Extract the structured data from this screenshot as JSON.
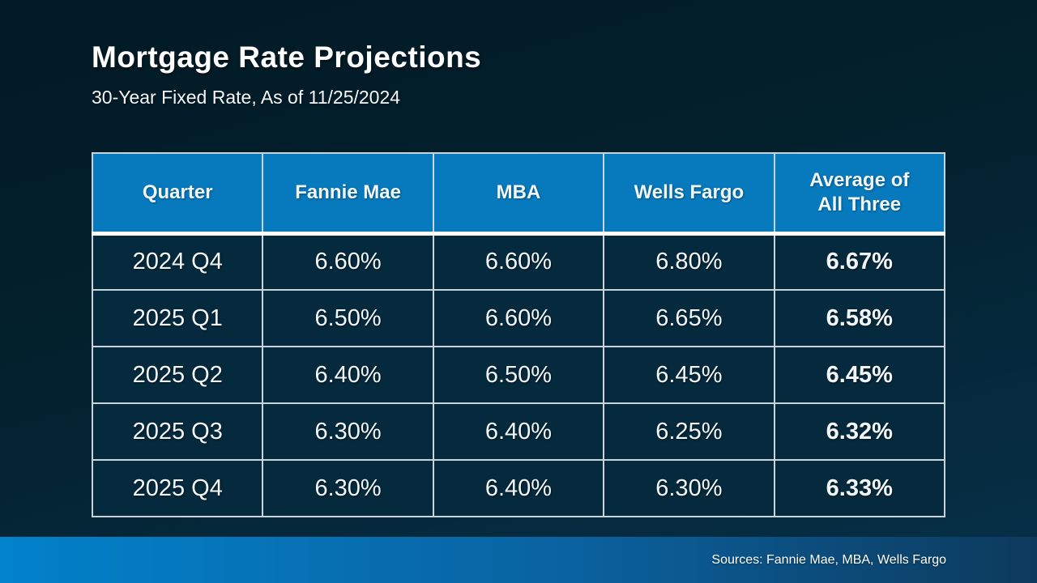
{
  "slide": {
    "title": "Mortgage Rate Projections",
    "subtitle": "30-Year Fixed Rate, As of 11/25/2024"
  },
  "footer": {
    "sources": "Sources: Fannie Mae, MBA, Wells Fargo"
  },
  "chart_data": {
    "type": "table",
    "title": "Mortgage Rate Projections",
    "subtitle": "30-Year Fixed Rate, As of 11/25/2024",
    "columns": [
      "Quarter",
      "Fannie Mae",
      "MBA",
      "Wells Fargo",
      "Average of All Three"
    ],
    "rows": [
      [
        "2024 Q4",
        "6.60%",
        "6.60%",
        "6.80%",
        "6.67%"
      ],
      [
        "2025 Q1",
        "6.50%",
        "6.60%",
        "6.65%",
        "6.58%"
      ],
      [
        "2025 Q2",
        "6.40%",
        "6.50%",
        "6.45%",
        "6.45%"
      ],
      [
        "2025 Q3",
        "6.30%",
        "6.40%",
        "6.25%",
        "6.32%"
      ],
      [
        "2025 Q4",
        "6.30%",
        "6.40%",
        "6.30%",
        "6.33%"
      ]
    ],
    "emphasized_column_index": 4,
    "sources_note": "Sources: Fannie Mae, MBA, Wells Fargo"
  },
  "colors": {
    "background_top": "#021a25",
    "background_bottom": "#073049",
    "header_bg": "#0779bd",
    "cell_bg": "#052a3d",
    "table_border": "#c9d4da",
    "text": "#ffffff",
    "footer_gradient_left": "#0282cb",
    "footer_gradient_right": "#0d3a5c"
  }
}
